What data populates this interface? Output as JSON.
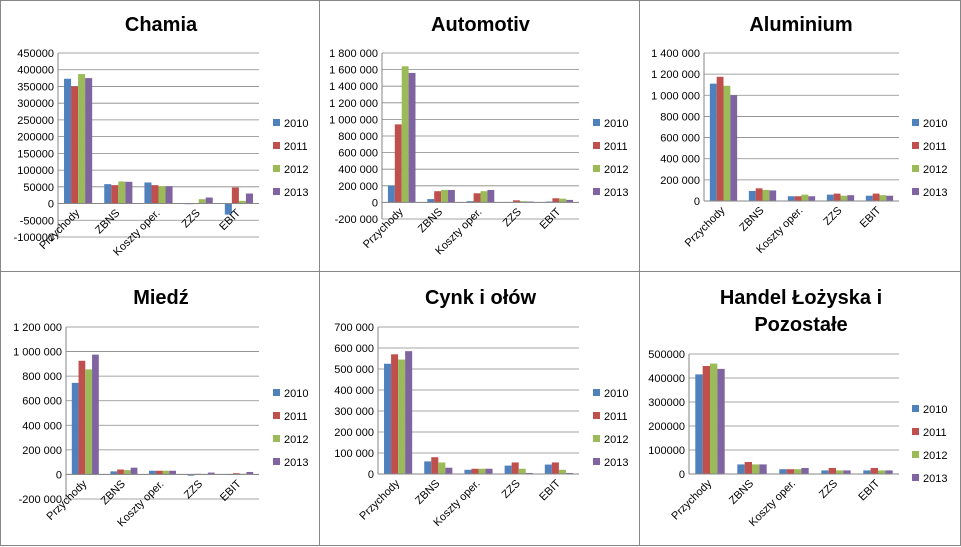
{
  "legend_colors": {
    "2010": "#4F81BD",
    "2011": "#C0504D",
    "2012": "#9BBB59",
    "2013": "#8064A2"
  },
  "chart_data": [
    {
      "type": "bar",
      "title": "Chamia",
      "categories": [
        "Przychody",
        "ZBNS",
        "Koszty oper.",
        "ZZS",
        "EBIT"
      ],
      "yticks": [
        "450000",
        "400000",
        "350000",
        "300000",
        "250000",
        "200000",
        "150000",
        "100000",
        "50000",
        "0",
        "-50000",
        "-100000"
      ],
      "ylim": [
        -100000,
        450000
      ],
      "series": [
        {
          "name": "2010",
          "values": [
            373000,
            58000,
            63000,
            -2000,
            -33000
          ]
        },
        {
          "name": "2011",
          "values": [
            350000,
            55000,
            55000,
            -1000,
            48000
          ]
        },
        {
          "name": "2012",
          "values": [
            387000,
            66000,
            52000,
            13000,
            8000
          ]
        },
        {
          "name": "2013",
          "values": [
            375000,
            65000,
            52000,
            18000,
            30000
          ]
        }
      ]
    },
    {
      "type": "bar",
      "title": "Automotiv",
      "categories": [
        "Przychody",
        "ZBNS",
        "Koszty oper.",
        "ZZS",
        "EBIT"
      ],
      "yticks": [
        "1 800 000",
        "1 600 000",
        "1 400 000",
        "1 200 000",
        "1 000 000",
        "800 000",
        "600 000",
        "400 000",
        "200 000",
        "0",
        "-200 000"
      ],
      "ylim": [
        -200000,
        1800000
      ],
      "series": [
        {
          "name": "2010",
          "values": [
            205000,
            40000,
            15000,
            5000,
            10000
          ]
        },
        {
          "name": "2011",
          "values": [
            940000,
            135000,
            110000,
            25000,
            50000
          ]
        },
        {
          "name": "2012",
          "values": [
            1640000,
            150000,
            135000,
            15000,
            45000
          ]
        },
        {
          "name": "2013",
          "values": [
            1560000,
            150000,
            150000,
            10000,
            30000
          ]
        }
      ]
    },
    {
      "type": "bar",
      "title": "Aluminium",
      "categories": [
        "Przychody",
        "ZBNS",
        "Koszty oper.",
        "ZZS",
        "EBIT"
      ],
      "yticks": [
        "1 400 000",
        "1 200 000",
        "1 000 000",
        "800 000",
        "600 000",
        "400 000",
        "200 000",
        "0"
      ],
      "ylim": [
        0,
        1400000
      ],
      "series": [
        {
          "name": "2010",
          "values": [
            1110000,
            95000,
            45000,
            60000,
            50000
          ]
        },
        {
          "name": "2011",
          "values": [
            1175000,
            120000,
            45000,
            70000,
            70000
          ]
        },
        {
          "name": "2012",
          "values": [
            1090000,
            105000,
            60000,
            50000,
            55000
          ]
        },
        {
          "name": "2013",
          "values": [
            1000000,
            100000,
            45000,
            55000,
            50000
          ]
        }
      ]
    },
    {
      "type": "bar",
      "title": "Miedź",
      "categories": [
        "Przychody",
        "ZBNS",
        "Koszty oper.",
        "ZZS",
        "EBIT"
      ],
      "yticks": [
        "1 200 000",
        "1 000 000",
        "800 000",
        "600 000",
        "400 000",
        "200 000",
        "0",
        "-200 000"
      ],
      "ylim": [
        -200000,
        1200000
      ],
      "series": [
        {
          "name": "2010",
          "values": [
            745000,
            25000,
            30000,
            -10000,
            -5000
          ]
        },
        {
          "name": "2011",
          "values": [
            925000,
            40000,
            30000,
            5000,
            10000
          ]
        },
        {
          "name": "2012",
          "values": [
            855000,
            35000,
            30000,
            -5000,
            5000
          ]
        },
        {
          "name": "2013",
          "values": [
            975000,
            55000,
            30000,
            15000,
            20000
          ]
        }
      ]
    },
    {
      "type": "bar",
      "title": "Cynk i ołów",
      "categories": [
        "Przychody",
        "ZBNS",
        "Koszty oper.",
        "ZZS",
        "EBIT"
      ],
      "yticks": [
        "700 000",
        "600 000",
        "500 000",
        "400 000",
        "300 000",
        "200 000",
        "100 000",
        "0"
      ],
      "ylim": [
        0,
        700000
      ],
      "series": [
        {
          "name": "2010",
          "values": [
            525000,
            60000,
            20000,
            40000,
            45000
          ]
        },
        {
          "name": "2011",
          "values": [
            570000,
            80000,
            25000,
            55000,
            55000
          ]
        },
        {
          "name": "2012",
          "values": [
            545000,
            55000,
            25000,
            25000,
            20000
          ]
        },
        {
          "name": "2013",
          "values": [
            585000,
            30000,
            25000,
            5000,
            5000
          ]
        }
      ]
    },
    {
      "type": "bar",
      "title": "Handel Łożyska i\nPozostałe",
      "categories": [
        "Przychody",
        "ZBNS",
        "Koszty oper.",
        "ZZS",
        "EBIT"
      ],
      "yticks": [
        "500000",
        "400000",
        "300000",
        "200000",
        "100000",
        "0"
      ],
      "ylim": [
        0,
        500000
      ],
      "series": [
        {
          "name": "2010",
          "values": [
            415000,
            40000,
            20000,
            15000,
            15000
          ]
        },
        {
          "name": "2011",
          "values": [
            450000,
            50000,
            20000,
            25000,
            25000
          ]
        },
        {
          "name": "2012",
          "values": [
            460000,
            40000,
            20000,
            15000,
            15000
          ]
        },
        {
          "name": "2013",
          "values": [
            438000,
            40000,
            25000,
            15000,
            15000
          ]
        }
      ]
    }
  ]
}
